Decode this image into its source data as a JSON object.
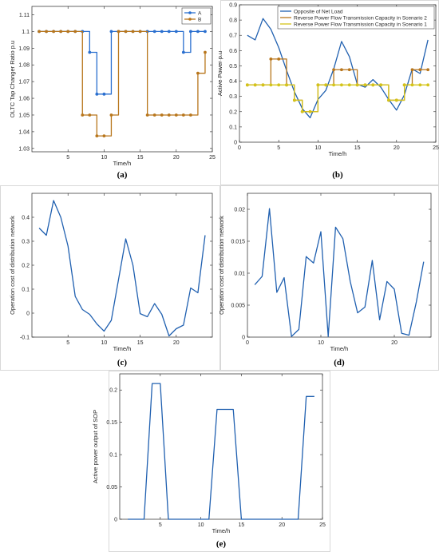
{
  "chart_data": [
    {
      "panel": "(a)",
      "type": "line",
      "step": true,
      "xlabel": "Time/h",
      "ylabel": "OLTC Tap Changer Ratio p.u",
      "xlim": [
        0,
        25
      ],
      "ylim": [
        1.028,
        1.115
      ],
      "xticks": [
        5,
        10,
        15,
        20,
        25
      ],
      "yticks": [
        1.03,
        1.04,
        1.05,
        1.06,
        1.07,
        1.08,
        1.09,
        1.1,
        1.11
      ],
      "ytick_labels": [
        "1.03",
        "1.04",
        "1.05",
        "1.06",
        "1.07",
        "1.08",
        "1.09",
        "1.1",
        "1.11"
      ],
      "grid": false,
      "legend": "top-right",
      "x": [
        1,
        2,
        3,
        4,
        5,
        6,
        7,
        8,
        9,
        10,
        11,
        12,
        13,
        14,
        15,
        16,
        17,
        18,
        19,
        20,
        21,
        22,
        23,
        24
      ],
      "series": [
        {
          "name": "A",
          "color": "#2a6fcf",
          "values": [
            1.1,
            1.1,
            1.1,
            1.1,
            1.1,
            1.1,
            1.1,
            1.0875,
            1.0625,
            1.0625,
            1.1,
            1.1,
            1.1,
            1.1,
            1.1,
            1.1,
            1.1,
            1.1,
            1.1,
            1.1,
            1.0875,
            1.1,
            1.1,
            1.1
          ]
        },
        {
          "name": "B",
          "color": "#b8761c",
          "values": [
            1.1,
            1.1,
            1.1,
            1.1,
            1.1,
            1.1,
            1.05,
            1.05,
            1.0375,
            1.0375,
            1.05,
            1.1,
            1.1,
            1.1,
            1.1,
            1.05,
            1.05,
            1.05,
            1.05,
            1.05,
            1.05,
            1.05,
            1.075,
            1.0875
          ]
        }
      ]
    },
    {
      "panel": "(b)",
      "type": "line",
      "xlabel": "Time/h",
      "ylabel": "Active Power p.u",
      "xlim": [
        0,
        25
      ],
      "ylim": [
        0,
        0.9
      ],
      "xticks": [
        0,
        5,
        10,
        15,
        20,
        25
      ],
      "yticks": [
        0,
        0.1,
        0.2,
        0.3,
        0.4,
        0.5,
        0.6,
        0.7,
        0.8,
        0.9
      ],
      "ytick_labels": [
        "0",
        "0.1",
        "0.2",
        "0.3",
        "0.4",
        "0.5",
        "0.6",
        "0.7",
        "0.8",
        "0.9"
      ],
      "grid": false,
      "legend": "top-right",
      "x": [
        1,
        2,
        3,
        4,
        5,
        6,
        7,
        8,
        9,
        10,
        11,
        12,
        13,
        14,
        15,
        16,
        17,
        18,
        19,
        20,
        21,
        22,
        23,
        24
      ],
      "series": [
        {
          "name": "Opposite of Net Load",
          "color": "#2060b0",
          "step": false,
          "values": [
            0.7,
            0.67,
            0.81,
            0.74,
            0.62,
            0.47,
            0.33,
            0.22,
            0.16,
            0.28,
            0.34,
            0.48,
            0.66,
            0.56,
            0.38,
            0.36,
            0.41,
            0.36,
            0.28,
            0.21,
            0.31,
            0.48,
            0.45,
            0.67
          ]
        },
        {
          "name": "Reverse Power Flow Transmission Capacity in Scenario 2",
          "color": "#b8761c",
          "step": true,
          "values": [
            0.375,
            0.375,
            0.375,
            0.545,
            0.545,
            0.375,
            0.275,
            0.2,
            0.2,
            0.375,
            0.375,
            0.475,
            0.475,
            0.475,
            0.375,
            0.375,
            0.375,
            0.375,
            0.275,
            0.275,
            0.375,
            0.475,
            0.475,
            0.475
          ]
        },
        {
          "name": "Reverse Power Flow Transmission Capacity in Scenario 1",
          "color": "#d4c41a",
          "step": true,
          "values": [
            0.375,
            0.375,
            0.375,
            0.375,
            0.375,
            0.375,
            0.275,
            0.2,
            0.2,
            0.375,
            0.375,
            0.375,
            0.375,
            0.375,
            0.375,
            0.375,
            0.375,
            0.375,
            0.275,
            0.275,
            0.375,
            0.375,
            0.375,
            0.375
          ]
        }
      ]
    },
    {
      "panel": "(c)",
      "type": "line",
      "xlabel": "Time/h",
      "ylabel": "Operation cost of distribution network",
      "xlim": [
        0,
        25
      ],
      "ylim": [
        -0.1,
        0.5
      ],
      "xticks": [
        5,
        10,
        15,
        20
      ],
      "yticks": [
        -0.1,
        0,
        0.1,
        0.2,
        0.3,
        0.4
      ],
      "ytick_labels": [
        "-0.1",
        "0",
        "0.1",
        "0.2",
        "0.3",
        "0.4"
      ],
      "grid": false,
      "x": [
        1,
        2,
        3,
        4,
        5,
        6,
        7,
        8,
        9,
        10,
        11,
        12,
        13,
        14,
        15,
        16,
        17,
        18,
        19,
        20,
        21,
        22,
        23,
        24
      ],
      "series": [
        {
          "color": "#2060b0",
          "values": [
            0.355,
            0.325,
            0.47,
            0.4,
            0.28,
            0.07,
            0.015,
            -0.005,
            -0.045,
            -0.075,
            -0.03,
            0.14,
            0.31,
            0.2,
            -0.002,
            -0.015,
            0.04,
            -0.005,
            -0.095,
            -0.065,
            -0.05,
            0.105,
            0.085,
            0.325
          ]
        }
      ]
    },
    {
      "panel": "(d)",
      "type": "line",
      "xlabel": "Time/h",
      "ylabel": "Operation cost of distribution network",
      "xlim": [
        0,
        25
      ],
      "ylim": [
        0,
        0.0225
      ],
      "xticks": [
        0,
        10,
        20
      ],
      "yticks": [
        0,
        0.005,
        0.01,
        0.015,
        0.02
      ],
      "ytick_labels": [
        "0",
        "0.005",
        "0.01",
        "0.015",
        "0.02"
      ],
      "grid": false,
      "x": [
        1,
        2,
        3,
        4,
        5,
        6,
        7,
        8,
        9,
        10,
        11,
        12,
        13,
        14,
        15,
        16,
        17,
        18,
        19,
        20,
        21,
        22,
        23,
        24
      ],
      "series": [
        {
          "color": "#2060b0",
          "values": [
            0.0082,
            0.0095,
            0.0201,
            0.007,
            0.0093,
            0.0001,
            0.0012,
            0.0126,
            0.0116,
            0.0165,
            0.0001,
            0.0172,
            0.0154,
            0.0087,
            0.0038,
            0.0047,
            0.012,
            0.0027,
            0.0087,
            0.0075,
            0.0006,
            0.0003,
            0.0055,
            0.0118
          ]
        }
      ]
    },
    {
      "panel": "(e)",
      "type": "line",
      "xlabel": "Time/h",
      "ylabel": "Active power output of SOP",
      "xlim": [
        0,
        25
      ],
      "ylim": [
        0,
        0.225
      ],
      "xticks": [
        5,
        10,
        15,
        20,
        25
      ],
      "yticks": [
        0,
        0.05,
        0.1,
        0.15,
        0.2
      ],
      "ytick_labels": [
        "0",
        "0.05",
        "0.1",
        "0.15",
        "0.2"
      ],
      "grid": false,
      "x": [
        1,
        2,
        3,
        4,
        5,
        6,
        7,
        8,
        9,
        10,
        11,
        12,
        13,
        14,
        15,
        16,
        17,
        18,
        19,
        20,
        21,
        22,
        23,
        24
      ],
      "series": [
        {
          "color": "#2060b0",
          "values": [
            0,
            0,
            0,
            0.21,
            0.21,
            0,
            0,
            0,
            0,
            0,
            0,
            0.17,
            0.17,
            0.17,
            0,
            0,
            0,
            0,
            0,
            0,
            0,
            0,
            0.19,
            0.19
          ]
        }
      ]
    }
  ]
}
